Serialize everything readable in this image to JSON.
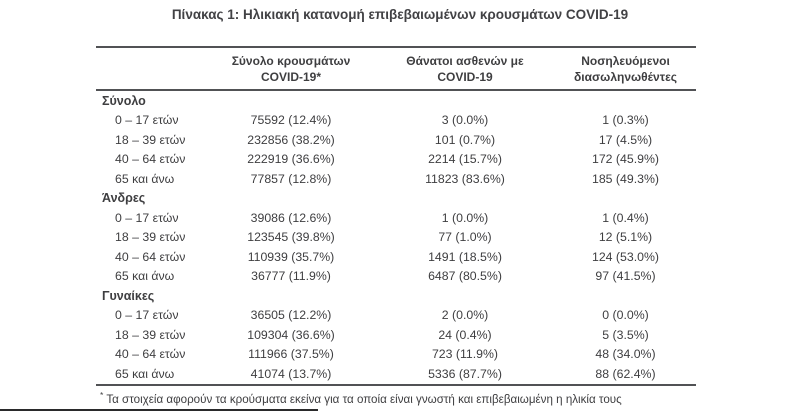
{
  "page": {
    "title": "Πίνακας 1: Ηλικιακή κατανομή επιβεβαιωμένων κρουσμάτων COVID-19",
    "footnote_marker": "*",
    "footnote_text": "Τα στοιχεία αφορούν τα κρούσματα εκείνα για τα οποία είναι γνωστή και επιβεβαιωμένη η ηλικία τους"
  },
  "table": {
    "column_headers": [
      {
        "line1": "Σύνολο κρουσμάτων",
        "line2": "COVID-19*"
      },
      {
        "line1": "Θάνατοι ασθενών με",
        "line2": "COVID-19"
      },
      {
        "line1": "Νοσηλευόμενοι",
        "line2": "διασωληνωθέντες"
      }
    ],
    "sections": [
      {
        "name": "Σύνολο",
        "rows": [
          {
            "label": "0 – 17 ετών",
            "cases": "75592 (12.4%)",
            "deaths": "3 (0.0%)",
            "intubated": "1 (0.3%)"
          },
          {
            "label": "18 – 39 ετών",
            "cases": "232856 (38.2%)",
            "deaths": "101 (0.7%)",
            "intubated": "17 (4.5%)"
          },
          {
            "label": "40 – 64 ετών",
            "cases": "222919 (36.6%)",
            "deaths": "2214 (15.7%)",
            "intubated": "172 (45.9%)"
          },
          {
            "label": "65 και άνω",
            "cases": "77857 (12.8%)",
            "deaths": "11823 (83.6%)",
            "intubated": "185 (49.3%)"
          }
        ]
      },
      {
        "name": "Άνδρες",
        "rows": [
          {
            "label": "0 – 17 ετών",
            "cases": "39086 (12.6%)",
            "deaths": "1 (0.0%)",
            "intubated": "1 (0.4%)"
          },
          {
            "label": "18 – 39 ετών",
            "cases": "123545 (39.8%)",
            "deaths": "77 (1.0%)",
            "intubated": "12 (5.1%)"
          },
          {
            "label": "40 – 64 ετών",
            "cases": "110939 (35.7%)",
            "deaths": "1491 (18.5%)",
            "intubated": "124 (53.0%)"
          },
          {
            "label": "65 και άνω",
            "cases": "36777 (11.9%)",
            "deaths": "6487 (80.5%)",
            "intubated": "97 (41.5%)"
          }
        ]
      },
      {
        "name": "Γυναίκες",
        "rows": [
          {
            "label": "0 – 17 ετών",
            "cases": "36505 (12.2%)",
            "deaths": "2 (0.0%)",
            "intubated": "0 (0.0%)"
          },
          {
            "label": "18 – 39 ετών",
            "cases": "109304 (36.6%)",
            "deaths": "24 (0.4%)",
            "intubated": "5 (3.5%)"
          },
          {
            "label": "40 – 64 ετών",
            "cases": "111966 (37.5%)",
            "deaths": "723 (11.9%)",
            "intubated": "48 (34.0%)"
          },
          {
            "label": "65 και άνω",
            "cases": "41074 (13.7%)",
            "deaths": "5336 (87.7%)",
            "intubated": "88 (62.4%)"
          }
        ]
      }
    ]
  },
  "colors": {
    "text": "#3e3e40",
    "rule": "#515255",
    "background": "#ffffff"
  }
}
